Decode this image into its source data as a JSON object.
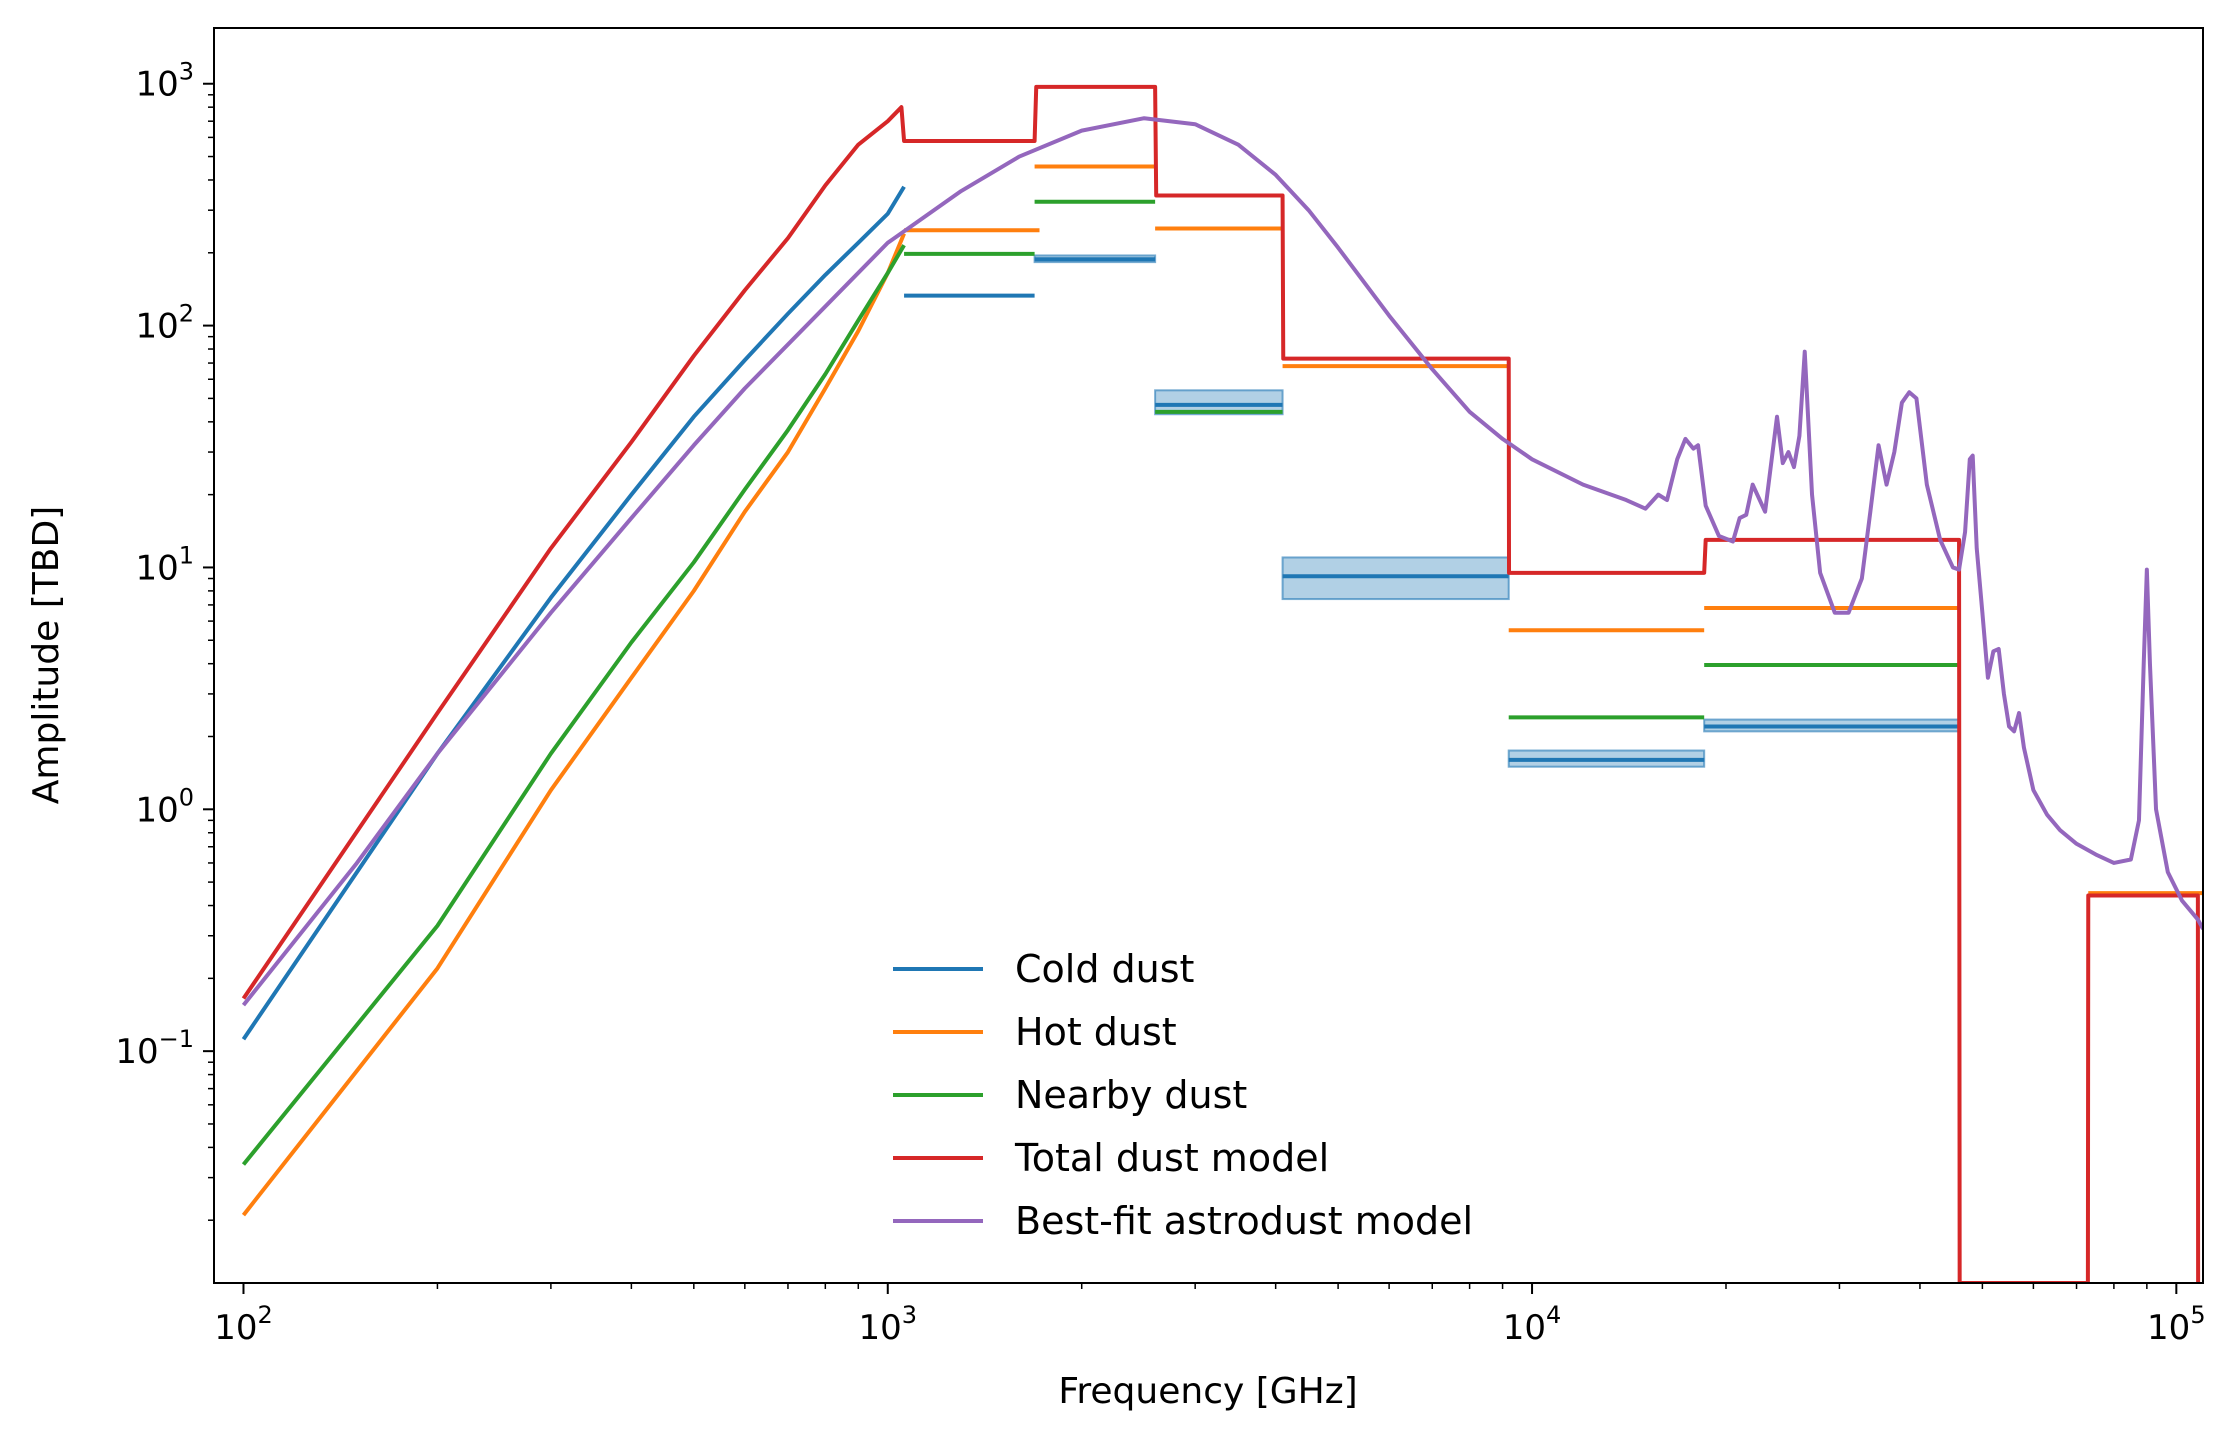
{
  "chart_data": {
    "type": "line",
    "title": "",
    "xlabel": "Frequency [GHz]",
    "ylabel": "Amplitude [TBD]",
    "xscale": "log",
    "yscale": "log",
    "xlim": [
      90,
      110000
    ],
    "ylim": [
      0.011,
      1700
    ],
    "x_ticks": [
      {
        "value": 100,
        "base": "10",
        "exp": "2"
      },
      {
        "value": 1000,
        "base": "10",
        "exp": "3"
      },
      {
        "value": 10000,
        "base": "10",
        "exp": "4"
      },
      {
        "value": 100000,
        "base": "10",
        "exp": "5"
      }
    ],
    "y_ticks": [
      {
        "value": 0.1,
        "base": "10",
        "exp": "−1"
      },
      {
        "value": 1,
        "base": "10",
        "exp": "0"
      },
      {
        "value": 10,
        "base": "10",
        "exp": "1"
      },
      {
        "value": 100,
        "base": "10",
        "exp": "2"
      },
      {
        "value": 1000,
        "base": "10",
        "exp": "3"
      }
    ],
    "grid": false,
    "legend_position": "bottom-center",
    "series": [
      {
        "name": "Cold dust",
        "color": "#1f77b4",
        "curve": [
          [
            100,
            0.112
          ],
          [
            150,
            0.55
          ],
          [
            200,
            1.7
          ],
          [
            300,
            7.5
          ],
          [
            400,
            20
          ],
          [
            500,
            42
          ],
          [
            600,
            72
          ],
          [
            700,
            112
          ],
          [
            800,
            162
          ],
          [
            900,
            220
          ],
          [
            1000,
            290
          ],
          [
            1060,
            375
          ]
        ],
        "bands": [
          {
            "x": [
              1060,
              1690
            ],
            "y": 133
          },
          {
            "x": [
              1690,
              2600
            ],
            "y": 188,
            "err": [
              183,
              195
            ]
          },
          {
            "x": [
              2600,
              4100
            ],
            "y": 47,
            "err": [
              43,
              54
            ]
          },
          {
            "x": [
              4100,
              9200
            ],
            "y": 9.2,
            "err": [
              7.4,
              11
            ]
          },
          {
            "x": [
              9200,
              18500
            ],
            "y": 1.6,
            "err": [
              1.5,
              1.75
            ]
          },
          {
            "x": [
              18500,
              46000
            ],
            "y": 2.2,
            "err": [
              2.1,
              2.35
            ]
          }
        ]
      },
      {
        "name": "Hot dust",
        "color": "#ff7f0e",
        "curve": [
          [
            100,
            0.021
          ],
          [
            200,
            0.22
          ],
          [
            300,
            1.2
          ],
          [
            400,
            3.5
          ],
          [
            500,
            8
          ],
          [
            600,
            17
          ],
          [
            700,
            30
          ],
          [
            800,
            55
          ],
          [
            900,
            95
          ],
          [
            1000,
            165
          ],
          [
            1060,
            240
          ]
        ],
        "bands": [
          {
            "x": [
              1060,
              1720
            ],
            "y": 248
          },
          {
            "x": [
              1690,
              2600
            ],
            "y": 455
          },
          {
            "x": [
              2600,
              4100
            ],
            "y": 252
          },
          {
            "x": [
              4100,
              9200
            ],
            "y": 68
          },
          {
            "x": [
              9200,
              18500
            ],
            "y": 5.5
          },
          {
            "x": [
              18500,
              46000
            ],
            "y": 6.8
          },
          {
            "x": [
              73000,
              110000
            ],
            "y": 0.45
          }
        ]
      },
      {
        "name": "Nearby dust",
        "color": "#2ca02c",
        "curve": [
          [
            100,
            0.034
          ],
          [
            200,
            0.33
          ],
          [
            300,
            1.7
          ],
          [
            400,
            4.9
          ],
          [
            500,
            10.5
          ],
          [
            600,
            21
          ],
          [
            700,
            37
          ],
          [
            800,
            63
          ],
          [
            900,
            105
          ],
          [
            1000,
            165
          ],
          [
            1060,
            215
          ]
        ],
        "bands": [
          {
            "x": [
              1060,
              1690
            ],
            "y": 198
          },
          {
            "x": [
              1690,
              2600
            ],
            "y": 325
          },
          {
            "x": [
              2600,
              4100
            ],
            "y": 44
          },
          {
            "x": [
              9200,
              18500
            ],
            "y": 2.4
          },
          {
            "x": [
              18500,
              46000
            ],
            "y": 3.95
          }
        ]
      },
      {
        "name": "Total dust model",
        "color": "#d62728",
        "points": [
          [
            100,
            0.165
          ],
          [
            200,
            2.5
          ],
          [
            300,
            12
          ],
          [
            400,
            33
          ],
          [
            500,
            75
          ],
          [
            600,
            140
          ],
          [
            700,
            230
          ],
          [
            800,
            380
          ],
          [
            900,
            560
          ],
          [
            1000,
            700
          ],
          [
            1050,
            800
          ],
          [
            1060,
            580
          ],
          [
            1690,
            580
          ],
          [
            1700,
            970
          ],
          [
            2600,
            970
          ],
          [
            2610,
            345
          ],
          [
            4100,
            345
          ],
          [
            4110,
            73
          ],
          [
            9200,
            73
          ],
          [
            9210,
            9.5
          ],
          [
            18500,
            9.5
          ],
          [
            18600,
            13
          ],
          [
            46000,
            13
          ],
          [
            46100,
            0.011
          ],
          [
            72900,
            0.011
          ],
          [
            73000,
            0.44
          ],
          [
            108000,
            0.44
          ],
          [
            108100,
            0.011
          ]
        ]
      },
      {
        "name": "Best-fit astrodust model",
        "color": "#9467bd",
        "points": [
          [
            100,
            0.155
          ],
          [
            150,
            0.6
          ],
          [
            200,
            1.7
          ],
          [
            300,
            6.5
          ],
          [
            400,
            16
          ],
          [
            500,
            32
          ],
          [
            600,
            55
          ],
          [
            800,
            120
          ],
          [
            1000,
            220
          ],
          [
            1300,
            360
          ],
          [
            1600,
            500
          ],
          [
            2000,
            640
          ],
          [
            2500,
            720
          ],
          [
            3000,
            680
          ],
          [
            3500,
            560
          ],
          [
            4000,
            420
          ],
          [
            4500,
            300
          ],
          [
            5000,
            210
          ],
          [
            6000,
            110
          ],
          [
            7000,
            66
          ],
          [
            8000,
            44
          ],
          [
            9000,
            34
          ],
          [
            10000,
            28
          ],
          [
            12000,
            22
          ],
          [
            14000,
            19
          ],
          [
            15000,
            17.5
          ],
          [
            15700,
            20
          ],
          [
            16200,
            19
          ],
          [
            16800,
            28
          ],
          [
            17300,
            34
          ],
          [
            17800,
            31
          ],
          [
            18100,
            32
          ],
          [
            18600,
            18
          ],
          [
            19500,
            13.5
          ],
          [
            20500,
            12.8
          ],
          [
            21000,
            16
          ],
          [
            21500,
            16.5
          ],
          [
            22000,
            22
          ],
          [
            23000,
            17
          ],
          [
            24000,
            42
          ],
          [
            24500,
            27
          ],
          [
            25000,
            30
          ],
          [
            25500,
            26
          ],
          [
            26000,
            35
          ],
          [
            26500,
            78
          ],
          [
            27200,
            20
          ],
          [
            28000,
            9.5
          ],
          [
            29500,
            6.5
          ],
          [
            31000,
            6.5
          ],
          [
            32500,
            9
          ],
          [
            33500,
            17
          ],
          [
            34500,
            32
          ],
          [
            35500,
            22
          ],
          [
            36500,
            30
          ],
          [
            37500,
            48
          ],
          [
            38500,
            53
          ],
          [
            39500,
            50
          ],
          [
            41000,
            22
          ],
          [
            43000,
            13
          ],
          [
            45000,
            10
          ],
          [
            46000,
            9.8
          ],
          [
            47000,
            14
          ],
          [
            47800,
            28
          ],
          [
            48300,
            29
          ],
          [
            49000,
            12
          ],
          [
            50000,
            6.5
          ],
          [
            51000,
            3.5
          ],
          [
            52000,
            4.5
          ],
          [
            53000,
            4.6
          ],
          [
            54000,
            3
          ],
          [
            55000,
            2.2
          ],
          [
            56000,
            2.1
          ],
          [
            57000,
            2.5
          ],
          [
            58000,
            1.8
          ],
          [
            60000,
            1.2
          ],
          [
            63000,
            0.95
          ],
          [
            66000,
            0.82
          ],
          [
            70000,
            0.72
          ],
          [
            75000,
            0.65
          ],
          [
            80000,
            0.6
          ],
          [
            85000,
            0.62
          ],
          [
            87500,
            0.9
          ],
          [
            89000,
            4
          ],
          [
            90000,
            9.8
          ],
          [
            91000,
            4
          ],
          [
            93000,
            1
          ],
          [
            97000,
            0.55
          ],
          [
            102000,
            0.42
          ],
          [
            108000,
            0.35
          ],
          [
            110000,
            0.32
          ]
        ]
      }
    ]
  }
}
